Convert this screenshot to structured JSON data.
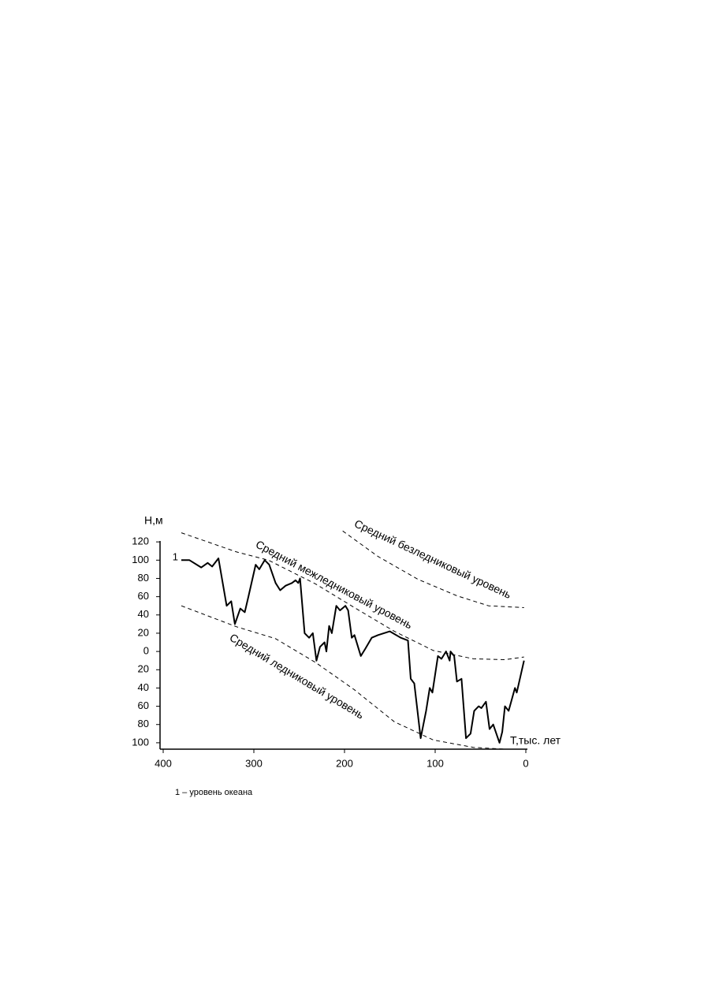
{
  "chart_data": {
    "type": "line",
    "y_label": "Н,м",
    "x_label": "Т,тыс. лет",
    "note": "1 – уровень океана",
    "xlim": [
      400,
      0
    ],
    "xticks": [
      400,
      300,
      200,
      100,
      0
    ],
    "ylim": [
      -107,
      121
    ],
    "yticks": [
      120,
      100,
      80,
      60,
      40,
      20,
      0,
      {
        "value": -20,
        "label": "20"
      },
      {
        "value": -40,
        "label": "40"
      },
      {
        "value": -60,
        "label": "60"
      },
      {
        "value": -80,
        "label": "80"
      },
      {
        "value": -100,
        "label": "100"
      }
    ],
    "series": [
      {
        "name": "1",
        "color": "#000",
        "dashed": false,
        "x": [
          380,
          371,
          358,
          351,
          346,
          339,
          330,
          325,
          321,
          315,
          310,
          306,
          298,
          294,
          288,
          283,
          276,
          271,
          265,
          258,
          254,
          251,
          249,
          244,
          239,
          235,
          231,
          227,
          222,
          220,
          217,
          214,
          209,
          205,
          199,
          196,
          192,
          189,
          182,
          177,
          170,
          163,
          150,
          138,
          130,
          127,
          123,
          116,
          110,
          106,
          103,
          97,
          93,
          88,
          84,
          83,
          79,
          76,
          71,
          66,
          61,
          57,
          52,
          49,
          44,
          40,
          36,
          29,
          26,
          23,
          19,
          12,
          10,
          2
        ],
        "values": [
          100,
          100,
          92,
          97,
          93,
          102,
          50,
          55,
          30,
          47,
          43,
          60,
          95,
          90,
          100,
          95,
          75,
          67,
          72,
          75,
          78,
          75,
          80,
          20,
          15,
          20,
          -10,
          5,
          10,
          0,
          28,
          20,
          50,
          45,
          50,
          45,
          15,
          18,
          -5,
          3,
          15,
          18,
          22,
          15,
          12,
          -30,
          -35,
          -95,
          -65,
          -40,
          -45,
          -5,
          -8,
          0,
          -10,
          0,
          -5,
          -33,
          -30,
          -95,
          -90,
          -65,
          -60,
          -62,
          -55,
          -85,
          -80,
          -100,
          -88,
          -60,
          -65,
          -40,
          -45,
          -10
        ]
      },
      {
        "name": "Средний межледниковый уровень",
        "color": "#000",
        "dashed": true,
        "x": [
          380,
          319,
          284,
          232,
          189,
          145,
          102,
          58,
          23,
          2
        ],
        "values": [
          130,
          109,
          100,
          74,
          48,
          22,
          1,
          -8,
          -9,
          -6
        ]
      },
      {
        "name": "Средний ледниковый уровень",
        "color": "#000",
        "dashed": true,
        "x": [
          380,
          319,
          276,
          232,
          189,
          145,
          102,
          58,
          23
        ],
        "values": [
          50,
          27,
          14,
          -12,
          -42,
          -77,
          -97,
          -105,
          -107
        ]
      },
      {
        "name": "Средний безледниковый уровень",
        "color": "#000",
        "dashed": true,
        "x": [
          202,
          163,
          119,
          76,
          41,
          2
        ],
        "values": [
          132,
          104,
          79,
          61,
          50,
          48
        ]
      }
    ]
  }
}
